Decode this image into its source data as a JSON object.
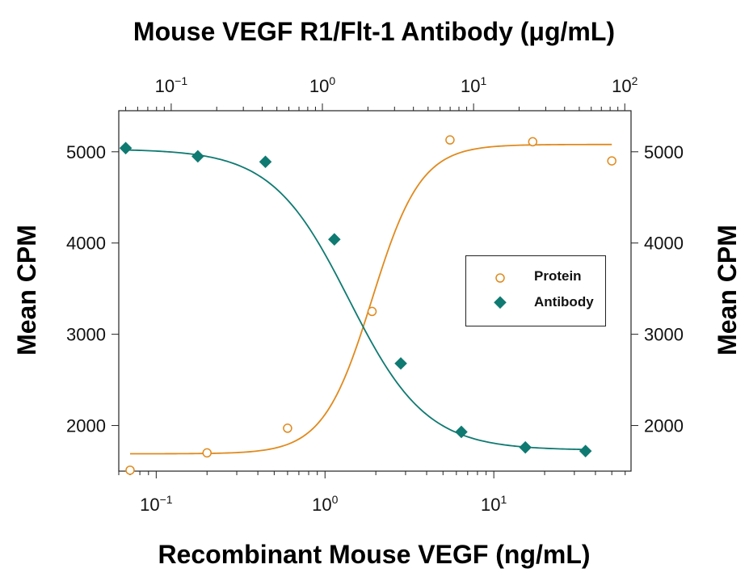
{
  "chart_data": {
    "type": "scatter",
    "title_top_axis": "Mouse VEGF R1/Flt-1 Antibody (μg/mL)",
    "xlabel": "Recombinant Mouse VEGF (ng/mL)",
    "ylabel_left": "Mean CPM",
    "ylabel_right": "Mean CPM",
    "x_scale": "log",
    "xlim": [
      0.06,
      65
    ],
    "x_ticks": [
      {
        "base": "10",
        "exp": "−1",
        "value": 0.1
      },
      {
        "base": "10",
        "exp": "0",
        "value": 1
      },
      {
        "base": "10",
        "exp": "1",
        "value": 10
      }
    ],
    "top_axis": {
      "scale": "log",
      "lim": [
        0.045,
        110
      ],
      "ticks": [
        {
          "base": "10",
          "exp": "−1",
          "value": 0.1
        },
        {
          "base": "10",
          "exp": "0",
          "value": 1
        },
        {
          "base": "10",
          "exp": "1",
          "value": 10
        },
        {
          "base": "10",
          "exp": "2",
          "value": 100
        }
      ]
    },
    "ylim": [
      1500,
      5450
    ],
    "y_ticks": [
      "2000",
      "3000",
      "4000",
      "5000"
    ],
    "y_tick_values": [
      2000,
      3000,
      4000,
      5000
    ],
    "grid": false,
    "legend_position": "center-right",
    "series": [
      {
        "name": "Protein",
        "marker": "open-circle",
        "color": "#e08a1e",
        "axis": "bottom",
        "x": [
          0.07,
          0.2,
          0.6,
          1.9,
          5.5,
          17,
          50
        ],
        "y": [
          1510,
          1700,
          1970,
          3250,
          5130,
          5110,
          4900
        ],
        "fit": {
          "bottom": 1690,
          "top": 5080,
          "ec50": 1.9,
          "hill": 3.0
        }
      },
      {
        "name": "Antibody",
        "marker": "filled-diamond",
        "color": "#0f7a72",
        "axis": "top",
        "x": [
          0.05,
          0.15,
          0.42,
          1.2,
          3.3,
          8.3,
          22,
          55
        ],
        "y": [
          5040,
          4950,
          4890,
          4040,
          2680,
          1930,
          1760,
          1720
        ],
        "fit": {
          "bottom": 1730,
          "top": 5030,
          "ec50": 1.5,
          "hill": 1.7
        }
      }
    ]
  }
}
